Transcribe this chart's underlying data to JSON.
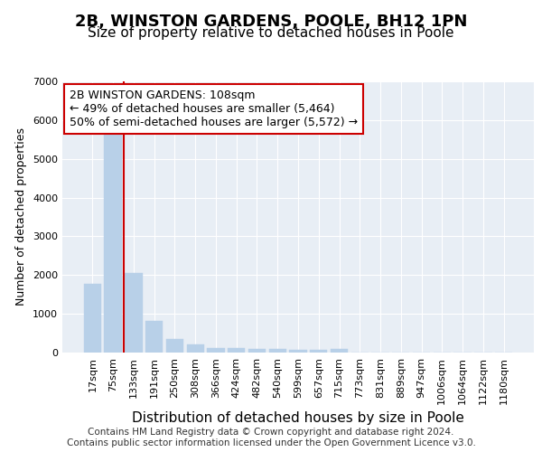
{
  "title": "2B, WINSTON GARDENS, POOLE, BH12 1PN",
  "subtitle": "Size of property relative to detached houses in Poole",
  "xlabel": "Distribution of detached houses by size in Poole",
  "ylabel": "Number of detached properties",
  "categories": [
    "17sqm",
    "75sqm",
    "133sqm",
    "191sqm",
    "250sqm",
    "308sqm",
    "366sqm",
    "424sqm",
    "482sqm",
    "540sqm",
    "599sqm",
    "657sqm",
    "715sqm",
    "773sqm",
    "831sqm",
    "889sqm",
    "947sqm",
    "1006sqm",
    "1064sqm",
    "1122sqm",
    "1180sqm"
  ],
  "values": [
    1780,
    5750,
    2050,
    820,
    360,
    220,
    120,
    110,
    95,
    90,
    80,
    75,
    85,
    0,
    0,
    0,
    0,
    0,
    0,
    0,
    0
  ],
  "bar_color": "#b8d0e8",
  "bar_edgecolor": "#b8d0e8",
  "vline_color": "#cc0000",
  "vline_x_index": 1.5,
  "annotation_text": "2B WINSTON GARDENS: 108sqm\n← 49% of detached houses are smaller (5,464)\n50% of semi-detached houses are larger (5,572) →",
  "annotation_box_facecolor": "#ffffff",
  "annotation_box_edgecolor": "#cc0000",
  "ylim": [
    0,
    7000
  ],
  "yticks": [
    0,
    1000,
    2000,
    3000,
    4000,
    5000,
    6000,
    7000
  ],
  "plot_bg_color": "#e8eef5",
  "footer_text": "Contains HM Land Registry data © Crown copyright and database right 2024.\nContains public sector information licensed under the Open Government Licence v3.0.",
  "title_fontsize": 13,
  "subtitle_fontsize": 11,
  "xlabel_fontsize": 11,
  "ylabel_fontsize": 9,
  "tick_fontsize": 8,
  "annotation_fontsize": 9,
  "footer_fontsize": 7.5
}
